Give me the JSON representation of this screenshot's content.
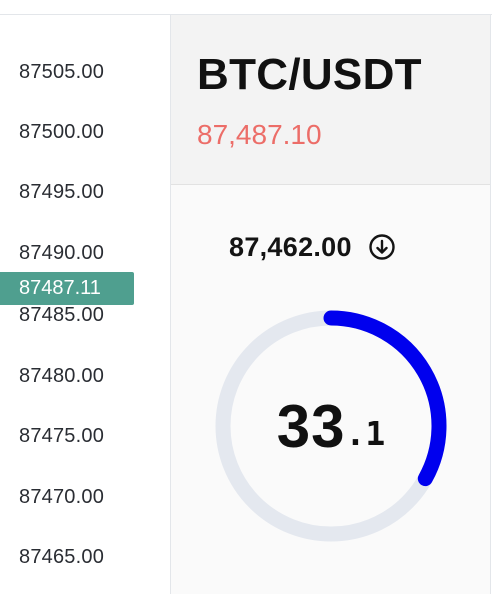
{
  "price_axis": {
    "ticks": [
      "87505.00",
      "87500.00",
      "87495.00",
      "87490.00",
      "87485.00",
      "87480.00",
      "87475.00",
      "87470.00",
      "87465.00"
    ],
    "current_price_label": "87487.11",
    "current_label_color": "#4f9f8f"
  },
  "ticker": {
    "pair": "BTC/USDT",
    "last_price": "87,487.10",
    "last_price_color": "#ec6d68"
  },
  "gauge_panel": {
    "reference_price": "87,462.00",
    "direction_icon": "arrow-down-circle-icon",
    "value_integer": "33",
    "value_decimal": ".1",
    "value": 33.1,
    "progress_fraction": 0.331,
    "arc_color": "#0000ee",
    "track_color": "#e4e8ef"
  }
}
